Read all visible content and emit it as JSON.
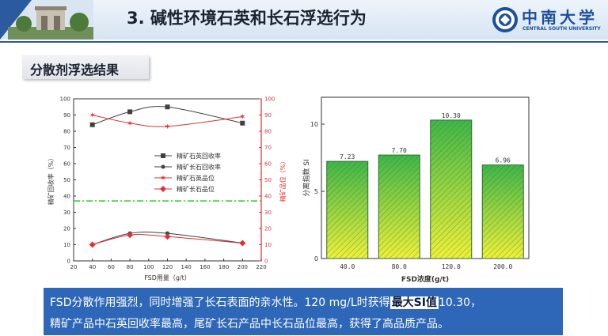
{
  "header": {
    "title": "3. 碱性环境石英和长石浮选行为"
  },
  "logo": {
    "cn": "中南大学",
    "en": "CENTRAL SOUTH UNIVERSITY"
  },
  "section": {
    "title": "分散剂浮选结果"
  },
  "chart_data": [
    {
      "type": "line",
      "xlabel": "FSD用量（g/t）",
      "ylabel_left": "精矿回收率（%）",
      "ylabel_right": "精矿品位（%）",
      "xlim": [
        20,
        220
      ],
      "ylim": [
        0,
        100
      ],
      "xticks": [
        "20",
        "40",
        "60",
        "80",
        "100",
        "120",
        "140",
        "160",
        "180",
        "200",
        "220"
      ],
      "yticks": [
        "0",
        "10",
        "20",
        "30",
        "40",
        "50",
        "60",
        "70",
        "80",
        "90",
        "100"
      ],
      "x": [
        40,
        80,
        120,
        200
      ],
      "series": [
        {
          "name": "精矿石英回收率",
          "values": [
            84,
            92,
            95,
            85
          ],
          "color": "#404040",
          "marker": "square"
        },
        {
          "name": "精矿长石回收率",
          "values": [
            10,
            17,
            17,
            11
          ],
          "color": "#404040",
          "marker": "circle"
        },
        {
          "name": "精矿石英品位",
          "values": [
            90,
            85,
            83,
            89
          ],
          "color": "#e03030",
          "marker": "star"
        },
        {
          "name": "精矿长石品位",
          "values": [
            10,
            16,
            15,
            11
          ],
          "color": "#e03030",
          "marker": "diamond"
        }
      ],
      "reference_line": {
        "y": 37,
        "color": "#22cc22",
        "style": "dash-dot"
      }
    },
    {
      "type": "bar",
      "title": "",
      "xlabel": "FSD浓度(g/t)",
      "ylabel": "分离指数 SI",
      "categories": [
        "40.0",
        "80.0",
        "120.0",
        "200.0"
      ],
      "values": [
        7.23,
        7.7,
        10.3,
        6.96
      ],
      "labels": [
        "7.23",
        "7.70",
        "10.30",
        "6.96"
      ],
      "yticks": [
        "0",
        "5",
        "10"
      ],
      "ylim": [
        0,
        12
      ],
      "fill_top": "#3fb64a",
      "fill_bottom": "#f0f03a"
    }
  ],
  "summary": {
    "line1_a": "FSD分散作用强烈，同时增强了长石表面的亲水性。120 mg/L时获得",
    "line1_highlight": "最大SI值",
    "line1_b": "10.30，",
    "line2": "精矿产品中石英回收率最高，尾矿长石产品中长石品位最高，获得了高品质产品。"
  }
}
